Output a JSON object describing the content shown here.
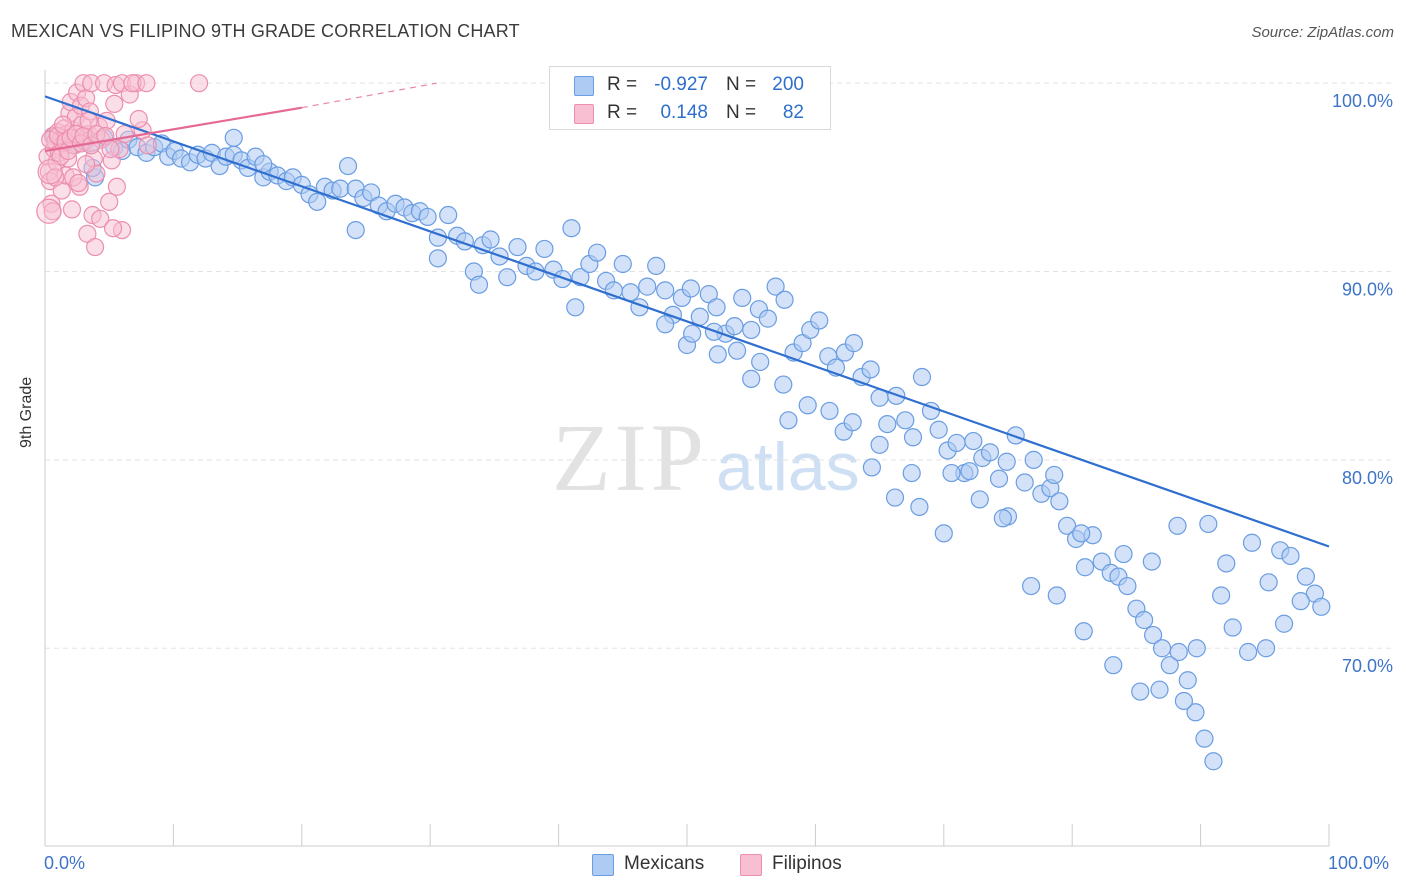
{
  "title": "MEXICAN VS FILIPINO 9TH GRADE CORRELATION CHART",
  "source": "Source: ZipAtlas.com",
  "legend": {
    "rows": [
      {
        "r_label": "R =",
        "r_value": "-0.927",
        "n_label": "N =",
        "n_value": "200"
      },
      {
        "r_label": "R =",
        "r_value": "0.148",
        "n_label": "N =",
        "n_value": "82"
      }
    ]
  },
  "bottom_legend": [
    {
      "label": "Mexicans"
    },
    {
      "label": "Filipinos"
    }
  ],
  "watermark": {
    "zip": "ZIP",
    "atlas": "atlas"
  },
  "colors": {
    "blue_fill": "#aecbf3",
    "blue_stroke": "#6a9de2",
    "blue_line": "#2f6fcf",
    "pink_fill": "#f7bfd1",
    "pink_stroke": "#ec8fae",
    "pink_line": "#e46a95",
    "axis_text": "#3d74c8",
    "grid": "#e3e3e3"
  },
  "chart_data": {
    "type": "scatter",
    "title": "MEXICAN VS FILIPINO 9TH GRADE CORRELATION CHART",
    "xlabel": "",
    "ylabel": "9th Grade",
    "x_tick_labels": [
      "0.0%",
      "100.0%"
    ],
    "y_tick_labels": [
      "100.0%",
      "90.0%",
      "80.0%",
      "70.0%"
    ],
    "y_ticks": [
      100,
      90,
      80,
      70
    ],
    "xlim": [
      0,
      100
    ],
    "ylim": [
      59.5,
      100.7
    ],
    "grid": true,
    "series": [
      {
        "name": "Mexicans",
        "r": -0.927,
        "n": 200,
        "trend": {
          "x0": 0,
          "y0": 99.3,
          "x1": 100,
          "y1": 75.4
        },
        "points": [
          [
            0.7,
            97.2
          ],
          [
            1.6,
            96.9
          ],
          [
            2.2,
            96.7
          ],
          [
            3.0,
            97.0
          ],
          [
            3.6,
            96.8
          ],
          [
            3.9,
            95.0
          ],
          [
            4.6,
            97.1
          ],
          [
            5.4,
            96.6
          ],
          [
            6.0,
            96.4
          ],
          [
            6.5,
            97.0
          ],
          [
            7.2,
            96.6
          ],
          [
            7.9,
            96.3
          ],
          [
            8.5,
            96.6
          ],
          [
            9.1,
            96.8
          ],
          [
            9.6,
            96.1
          ],
          [
            10.1,
            96.4
          ],
          [
            10.6,
            96.0
          ],
          [
            11.3,
            95.8
          ],
          [
            11.9,
            96.2
          ],
          [
            12.5,
            96.0
          ],
          [
            13.0,
            96.3
          ],
          [
            13.6,
            95.6
          ],
          [
            14.1,
            96.1
          ],
          [
            14.7,
            96.2
          ],
          [
            15.3,
            95.9
          ],
          [
            15.8,
            95.5
          ],
          [
            16.4,
            96.1
          ],
          [
            17.0,
            95.0
          ],
          [
            17.5,
            95.3
          ],
          [
            18.1,
            95.1
          ],
          [
            18.8,
            94.8
          ],
          [
            19.3,
            95.0
          ],
          [
            20.0,
            94.6
          ],
          [
            20.6,
            94.1
          ],
          [
            21.2,
            93.7
          ],
          [
            21.8,
            94.5
          ],
          [
            22.4,
            94.3
          ],
          [
            23.0,
            94.4
          ],
          [
            23.6,
            95.6
          ],
          [
            24.2,
            94.4
          ],
          [
            24.8,
            93.9
          ],
          [
            25.4,
            94.2
          ],
          [
            26.0,
            93.5
          ],
          [
            26.6,
            93.2
          ],
          [
            27.3,
            93.6
          ],
          [
            28.0,
            93.4
          ],
          [
            28.6,
            93.1
          ],
          [
            29.2,
            93.2
          ],
          [
            29.8,
            92.9
          ],
          [
            30.6,
            91.8
          ],
          [
            31.4,
            93.0
          ],
          [
            32.1,
            91.9
          ],
          [
            32.7,
            91.6
          ],
          [
            33.4,
            90.0
          ],
          [
            34.1,
            91.4
          ],
          [
            34.7,
            91.7
          ],
          [
            35.4,
            90.8
          ],
          [
            36.0,
            89.7
          ],
          [
            36.8,
            91.3
          ],
          [
            37.5,
            90.3
          ],
          [
            38.2,
            90.0
          ],
          [
            38.9,
            91.2
          ],
          [
            39.6,
            90.1
          ],
          [
            40.3,
            89.6
          ],
          [
            41.0,
            92.3
          ],
          [
            41.7,
            89.7
          ],
          [
            42.4,
            90.4
          ],
          [
            43.0,
            91.0
          ],
          [
            43.7,
            89.5
          ],
          [
            44.3,
            89.0
          ],
          [
            45.0,
            90.4
          ],
          [
            45.6,
            88.9
          ],
          [
            46.3,
            88.1
          ],
          [
            46.9,
            89.2
          ],
          [
            47.6,
            90.3
          ],
          [
            48.3,
            89.0
          ],
          [
            48.9,
            87.7
          ],
          [
            49.6,
            88.6
          ],
          [
            50.3,
            89.1
          ],
          [
            51.0,
            87.6
          ],
          [
            51.7,
            88.8
          ],
          [
            52.3,
            88.1
          ],
          [
            53.0,
            86.7
          ],
          [
            53.7,
            87.1
          ],
          [
            54.3,
            88.6
          ],
          [
            55.0,
            86.9
          ],
          [
            55.6,
            88.0
          ],
          [
            56.3,
            87.5
          ],
          [
            56.9,
            89.2
          ],
          [
            57.6,
            88.5
          ],
          [
            58.3,
            85.7
          ],
          [
            59.0,
            86.2
          ],
          [
            59.6,
            86.9
          ],
          [
            60.3,
            87.4
          ],
          [
            61.0,
            85.5
          ],
          [
            61.6,
            84.9
          ],
          [
            62.3,
            85.7
          ],
          [
            63.0,
            86.2
          ],
          [
            63.6,
            84.4
          ],
          [
            64.3,
            84.8
          ],
          [
            65.0,
            83.3
          ],
          [
            65.6,
            81.9
          ],
          [
            66.3,
            83.4
          ],
          [
            67.0,
            82.1
          ],
          [
            67.6,
            81.2
          ],
          [
            68.3,
            84.4
          ],
          [
            69.0,
            82.6
          ],
          [
            69.6,
            81.6
          ],
          [
            70.3,
            80.5
          ],
          [
            71.0,
            80.9
          ],
          [
            71.6,
            79.3
          ],
          [
            72.3,
            81.0
          ],
          [
            73.0,
            80.1
          ],
          [
            73.6,
            80.4
          ],
          [
            74.3,
            79.0
          ],
          [
            75.0,
            77.0
          ],
          [
            75.6,
            81.3
          ],
          [
            76.3,
            78.8
          ],
          [
            77.0,
            80.0
          ],
          [
            77.6,
            78.2
          ],
          [
            78.3,
            78.5
          ],
          [
            79.0,
            77.8
          ],
          [
            79.6,
            76.5
          ],
          [
            80.3,
            75.8
          ],
          [
            81.0,
            74.3
          ],
          [
            81.6,
            76.0
          ],
          [
            82.3,
            74.6
          ],
          [
            83.0,
            74.0
          ],
          [
            83.6,
            73.8
          ],
          [
            84.3,
            73.3
          ],
          [
            85.0,
            72.1
          ],
          [
            85.6,
            71.5
          ],
          [
            86.3,
            70.7
          ],
          [
            87.0,
            70.0
          ],
          [
            87.6,
            69.1
          ],
          [
            88.3,
            69.8
          ],
          [
            89.0,
            68.3
          ],
          [
            89.6,
            66.6
          ],
          [
            90.3,
            65.2
          ],
          [
            91.0,
            64.0
          ],
          [
            3.7,
            95.5
          ],
          [
            14.7,
            97.1
          ],
          [
            17.0,
            95.7
          ],
          [
            24.2,
            92.2
          ],
          [
            30.6,
            90.7
          ],
          [
            33.8,
            89.3
          ],
          [
            41.3,
            88.1
          ],
          [
            48.3,
            87.2
          ],
          [
            50.0,
            86.1
          ],
          [
            52.4,
            85.6
          ],
          [
            55.0,
            84.3
          ],
          [
            57.9,
            82.1
          ],
          [
            62.2,
            81.5
          ],
          [
            65.0,
            80.8
          ],
          [
            67.5,
            79.3
          ],
          [
            70.6,
            79.3
          ],
          [
            72.0,
            79.4
          ],
          [
            74.9,
            79.9
          ],
          [
            78.6,
            79.2
          ],
          [
            80.7,
            76.1
          ],
          [
            84.0,
            75.0
          ],
          [
            86.2,
            74.6
          ],
          [
            88.2,
            76.5
          ],
          [
            90.6,
            76.6
          ],
          [
            92.0,
            74.5
          ],
          [
            94.0,
            75.6
          ],
          [
            95.3,
            73.5
          ],
          [
            96.2,
            75.2
          ],
          [
            97.0,
            74.9
          ],
          [
            98.2,
            73.8
          ],
          [
            98.9,
            72.9
          ],
          [
            99.4,
            72.2
          ],
          [
            97.8,
            72.5
          ],
          [
            96.5,
            71.3
          ],
          [
            95.1,
            70.0
          ],
          [
            93.7,
            69.8
          ],
          [
            92.5,
            71.1
          ],
          [
            91.6,
            72.8
          ],
          [
            89.7,
            70.0
          ],
          [
            88.7,
            67.2
          ],
          [
            86.8,
            67.8
          ],
          [
            85.3,
            67.7
          ],
          [
            83.2,
            69.1
          ],
          [
            80.9,
            70.9
          ],
          [
            78.8,
            72.8
          ],
          [
            76.8,
            73.3
          ],
          [
            74.6,
            76.9
          ],
          [
            72.8,
            77.9
          ],
          [
            70.0,
            76.1
          ],
          [
            68.1,
            77.5
          ],
          [
            66.2,
            78.0
          ],
          [
            64.4,
            79.6
          ],
          [
            62.9,
            82.0
          ],
          [
            61.1,
            82.6
          ],
          [
            59.4,
            82.9
          ],
          [
            57.5,
            84.0
          ],
          [
            55.7,
            85.2
          ],
          [
            53.9,
            85.8
          ],
          [
            52.1,
            86.8
          ],
          [
            50.4,
            86.7
          ]
        ]
      },
      {
        "name": "Filipinos",
        "r": 0.148,
        "n": 82,
        "trend": {
          "x0": 0,
          "y0": 96.4,
          "x1": 20,
          "y1": 98.7
        },
        "trend_extension": {
          "x0": 20,
          "y0": 98.7,
          "x1": 30.5,
          "y1": 100.0
        },
        "points": [
          [
            0.2,
            96.1
          ],
          [
            0.3,
            95.3
          ],
          [
            0.4,
            94.8
          ],
          [
            0.5,
            93.6
          ],
          [
            0.6,
            97.2
          ],
          [
            0.7,
            96.5
          ],
          [
            0.8,
            96.9
          ],
          [
            0.9,
            95.8
          ],
          [
            1.0,
            97.4
          ],
          [
            1.1,
            96.3
          ],
          [
            1.2,
            97.0
          ],
          [
            1.3,
            94.3
          ],
          [
            1.4,
            96.8
          ],
          [
            1.5,
            97.6
          ],
          [
            1.6,
            95.1
          ],
          [
            1.7,
            97.3
          ],
          [
            1.8,
            96.0
          ],
          [
            1.9,
            98.4
          ],
          [
            2.0,
            99.0
          ],
          [
            2.1,
            93.3
          ],
          [
            2.2,
            97.5
          ],
          [
            2.3,
            96.7
          ],
          [
            2.4,
            98.2
          ],
          [
            2.5,
            99.5
          ],
          [
            2.6,
            97.1
          ],
          [
            2.7,
            94.5
          ],
          [
            2.8,
            98.8
          ],
          [
            2.9,
            97.8
          ],
          [
            3.0,
            100.0
          ],
          [
            3.1,
            96.9
          ],
          [
            3.2,
            99.2
          ],
          [
            3.3,
            92.0
          ],
          [
            3.4,
            97.3
          ],
          [
            3.5,
            98.5
          ],
          [
            3.6,
            100.0
          ],
          [
            3.7,
            93.0
          ],
          [
            3.8,
            96.0
          ],
          [
            3.9,
            91.3
          ],
          [
            4.0,
            95.2
          ],
          [
            4.2,
            97.7
          ],
          [
            4.4,
            97.0
          ],
          [
            4.6,
            100.0
          ],
          [
            4.8,
            98.0
          ],
          [
            5.0,
            93.7
          ],
          [
            5.2,
            95.9
          ],
          [
            5.4,
            98.9
          ],
          [
            5.6,
            94.5
          ],
          [
            5.8,
            96.5
          ],
          [
            6.0,
            92.2
          ],
          [
            6.2,
            97.3
          ],
          [
            0.4,
            97.0
          ],
          [
            0.6,
            93.2
          ],
          [
            0.8,
            95.0
          ],
          [
            1.0,
            97.2
          ],
          [
            1.2,
            96.1
          ],
          [
            1.4,
            97.8
          ],
          [
            1.6,
            96.9
          ],
          [
            1.8,
            96.4
          ],
          [
            2.0,
            97.1
          ],
          [
            2.2,
            95.0
          ],
          [
            2.4,
            97.3
          ],
          [
            2.6,
            94.7
          ],
          [
            2.8,
            96.8
          ],
          [
            3.0,
            97.2
          ],
          [
            3.2,
            95.7
          ],
          [
            3.4,
            98.0
          ],
          [
            3.6,
            96.7
          ],
          [
            4.0,
            97.3
          ],
          [
            4.3,
            92.8
          ],
          [
            4.7,
            97.2
          ],
          [
            5.1,
            96.5
          ],
          [
            5.5,
            99.9
          ],
          [
            6.0,
            100.0
          ],
          [
            6.6,
            99.4
          ],
          [
            7.1,
            100.0
          ],
          [
            7.6,
            97.5
          ],
          [
            8.0,
            96.7
          ],
          [
            6.8,
            100.0
          ],
          [
            7.9,
            100.0
          ],
          [
            12.0,
            100.0
          ],
          [
            7.3,
            98.1
          ],
          [
            5.3,
            92.3
          ]
        ]
      }
    ]
  }
}
